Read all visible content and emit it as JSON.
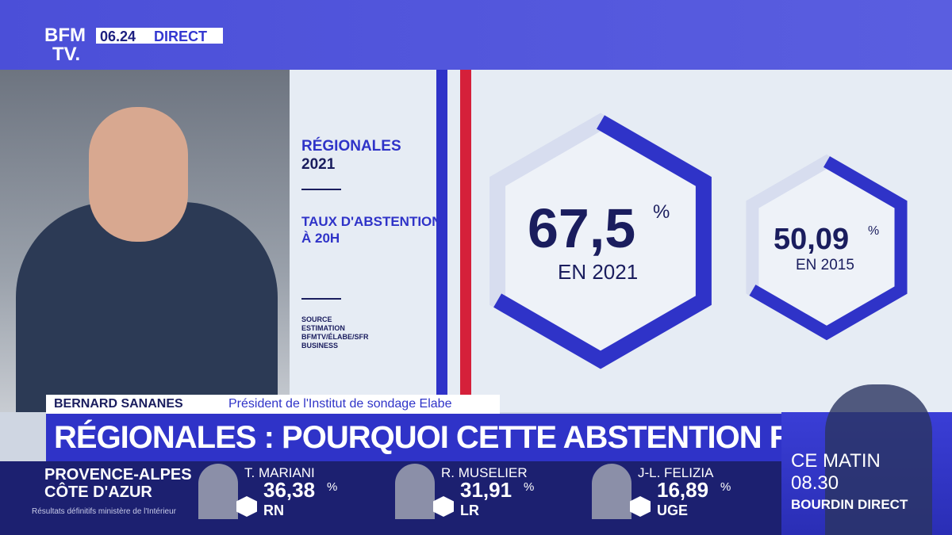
{
  "header": {
    "logo_top": "BFM",
    "logo_bottom": "TV.",
    "time": "06.24",
    "live": "DIRECT"
  },
  "infographic": {
    "title_line1": "RÉGIONALES",
    "title_line2": "2021",
    "subtitle_line1": "TAUX D'ABSTENTION",
    "subtitle_line2": "À 20H",
    "source": [
      "SOURCE",
      "ESTIMATION",
      "BFMTV/ÉLABE/SFR",
      "BUSINESS"
    ],
    "current": {
      "value": "67,5",
      "unit": "%",
      "label": "EN 2021"
    },
    "previous": {
      "value": "50,09",
      "unit": "%",
      "label": "EN 2015"
    }
  },
  "lower_third": {
    "name": "BERNARD SANANES",
    "role": "Président de l'Institut de sondage Elabe",
    "headline": "RÉGIONALES : POURQUOI CETTE ABSTENTION RECORD"
  },
  "results": {
    "region_line1": "PROVENCE-ALPES",
    "region_line2": "CÔTE D'AZUR",
    "source": "Résultats définitifs ministère de l'Intérieur",
    "candidates": [
      {
        "name": "T. MARIANI",
        "score": "36,38",
        "unit": "%",
        "party": "RN"
      },
      {
        "name": "R. MUSELIER",
        "score": "31,91",
        "unit": "%",
        "party": "LR"
      },
      {
        "name": "J-L. FELIZIA",
        "score": "16,89",
        "unit": "%",
        "party": "UGE"
      }
    ]
  },
  "program": {
    "line1": "CE MATIN",
    "time": "08.30",
    "show": "BOURDIN DIRECT"
  }
}
